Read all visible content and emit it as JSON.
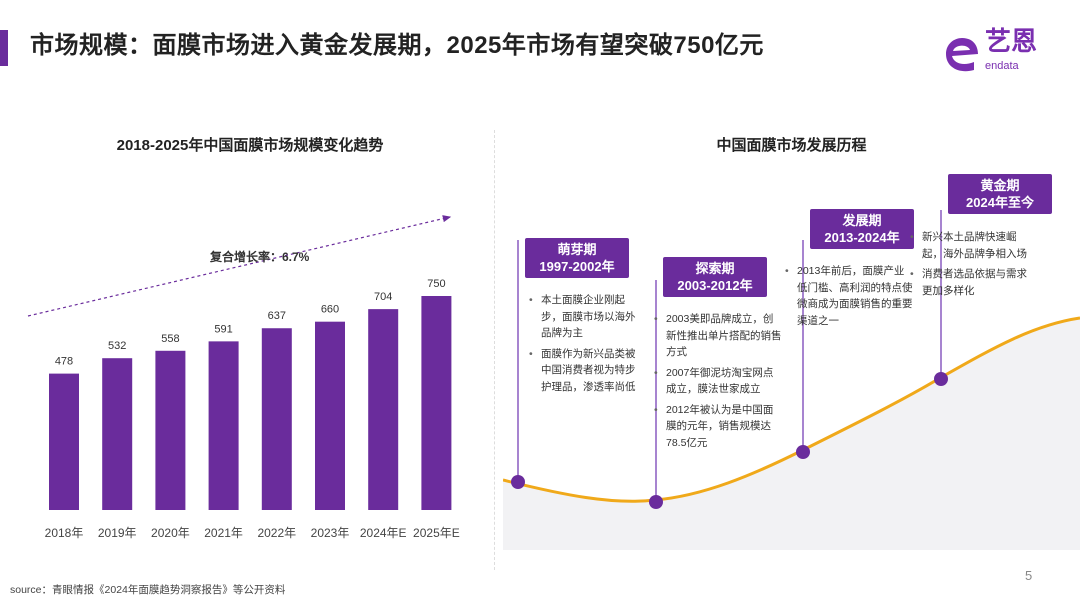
{
  "header": {
    "title": "市场规模：面膜市场进入黄金发展期，2025年市场有望突破750亿元",
    "logo_cn": "艺恩",
    "logo_en": "endata"
  },
  "colors": {
    "accent": "#6a2c9c",
    "bar": "#6a2c9c",
    "curve": "#f0a91a"
  },
  "chart_data": {
    "type": "bar",
    "title": "2018-2025年中国面膜市场规模变化趋势",
    "categories": [
      "2018年",
      "2019年",
      "2020年",
      "2021年",
      "2022年",
      "2023年",
      "2024年E",
      "2025年E"
    ],
    "values": [
      478,
      532,
      558,
      591,
      637,
      660,
      704,
      750
    ],
    "ylim": [
      0,
      750
    ],
    "grid": false,
    "annotation": "复合增长率：6.7%"
  },
  "timeline": {
    "title": "中国面膜市场发展历程",
    "stages": [
      {
        "name": "萌芽期",
        "period": "1997-2002年",
        "points": [
          "本土面膜企业刚起步，面膜市场以海外品牌为主",
          "面膜作为新兴品类被中国消费者视为特步护理品，渗透率尚低"
        ]
      },
      {
        "name": "探索期",
        "period": "2003-2012年",
        "points": [
          "2003美即品牌成立，创新性推出单片搭配的销售方式",
          "2007年御泥坊淘宝网点成立，膜法世家成立",
          "2012年被认为是中国面膜的元年，销售规模达78.5亿元"
        ]
      },
      {
        "name": "发展期",
        "period": "2013-2024年",
        "points": [
          "2013年前后，面膜产业低门槛、高利润的特点使微商成为面膜销售的重要渠道之一"
        ]
      },
      {
        "name": "黄金期",
        "period": "2024年至今",
        "points": [
          "新兴本土品牌快速崛起，海外品牌争相入场",
          "消费者选品依据与需求更加多样化"
        ]
      }
    ]
  },
  "footer": {
    "source": "source：青眼情报《2024年面膜趋势洞察报告》等公开资料",
    "page": "5"
  }
}
